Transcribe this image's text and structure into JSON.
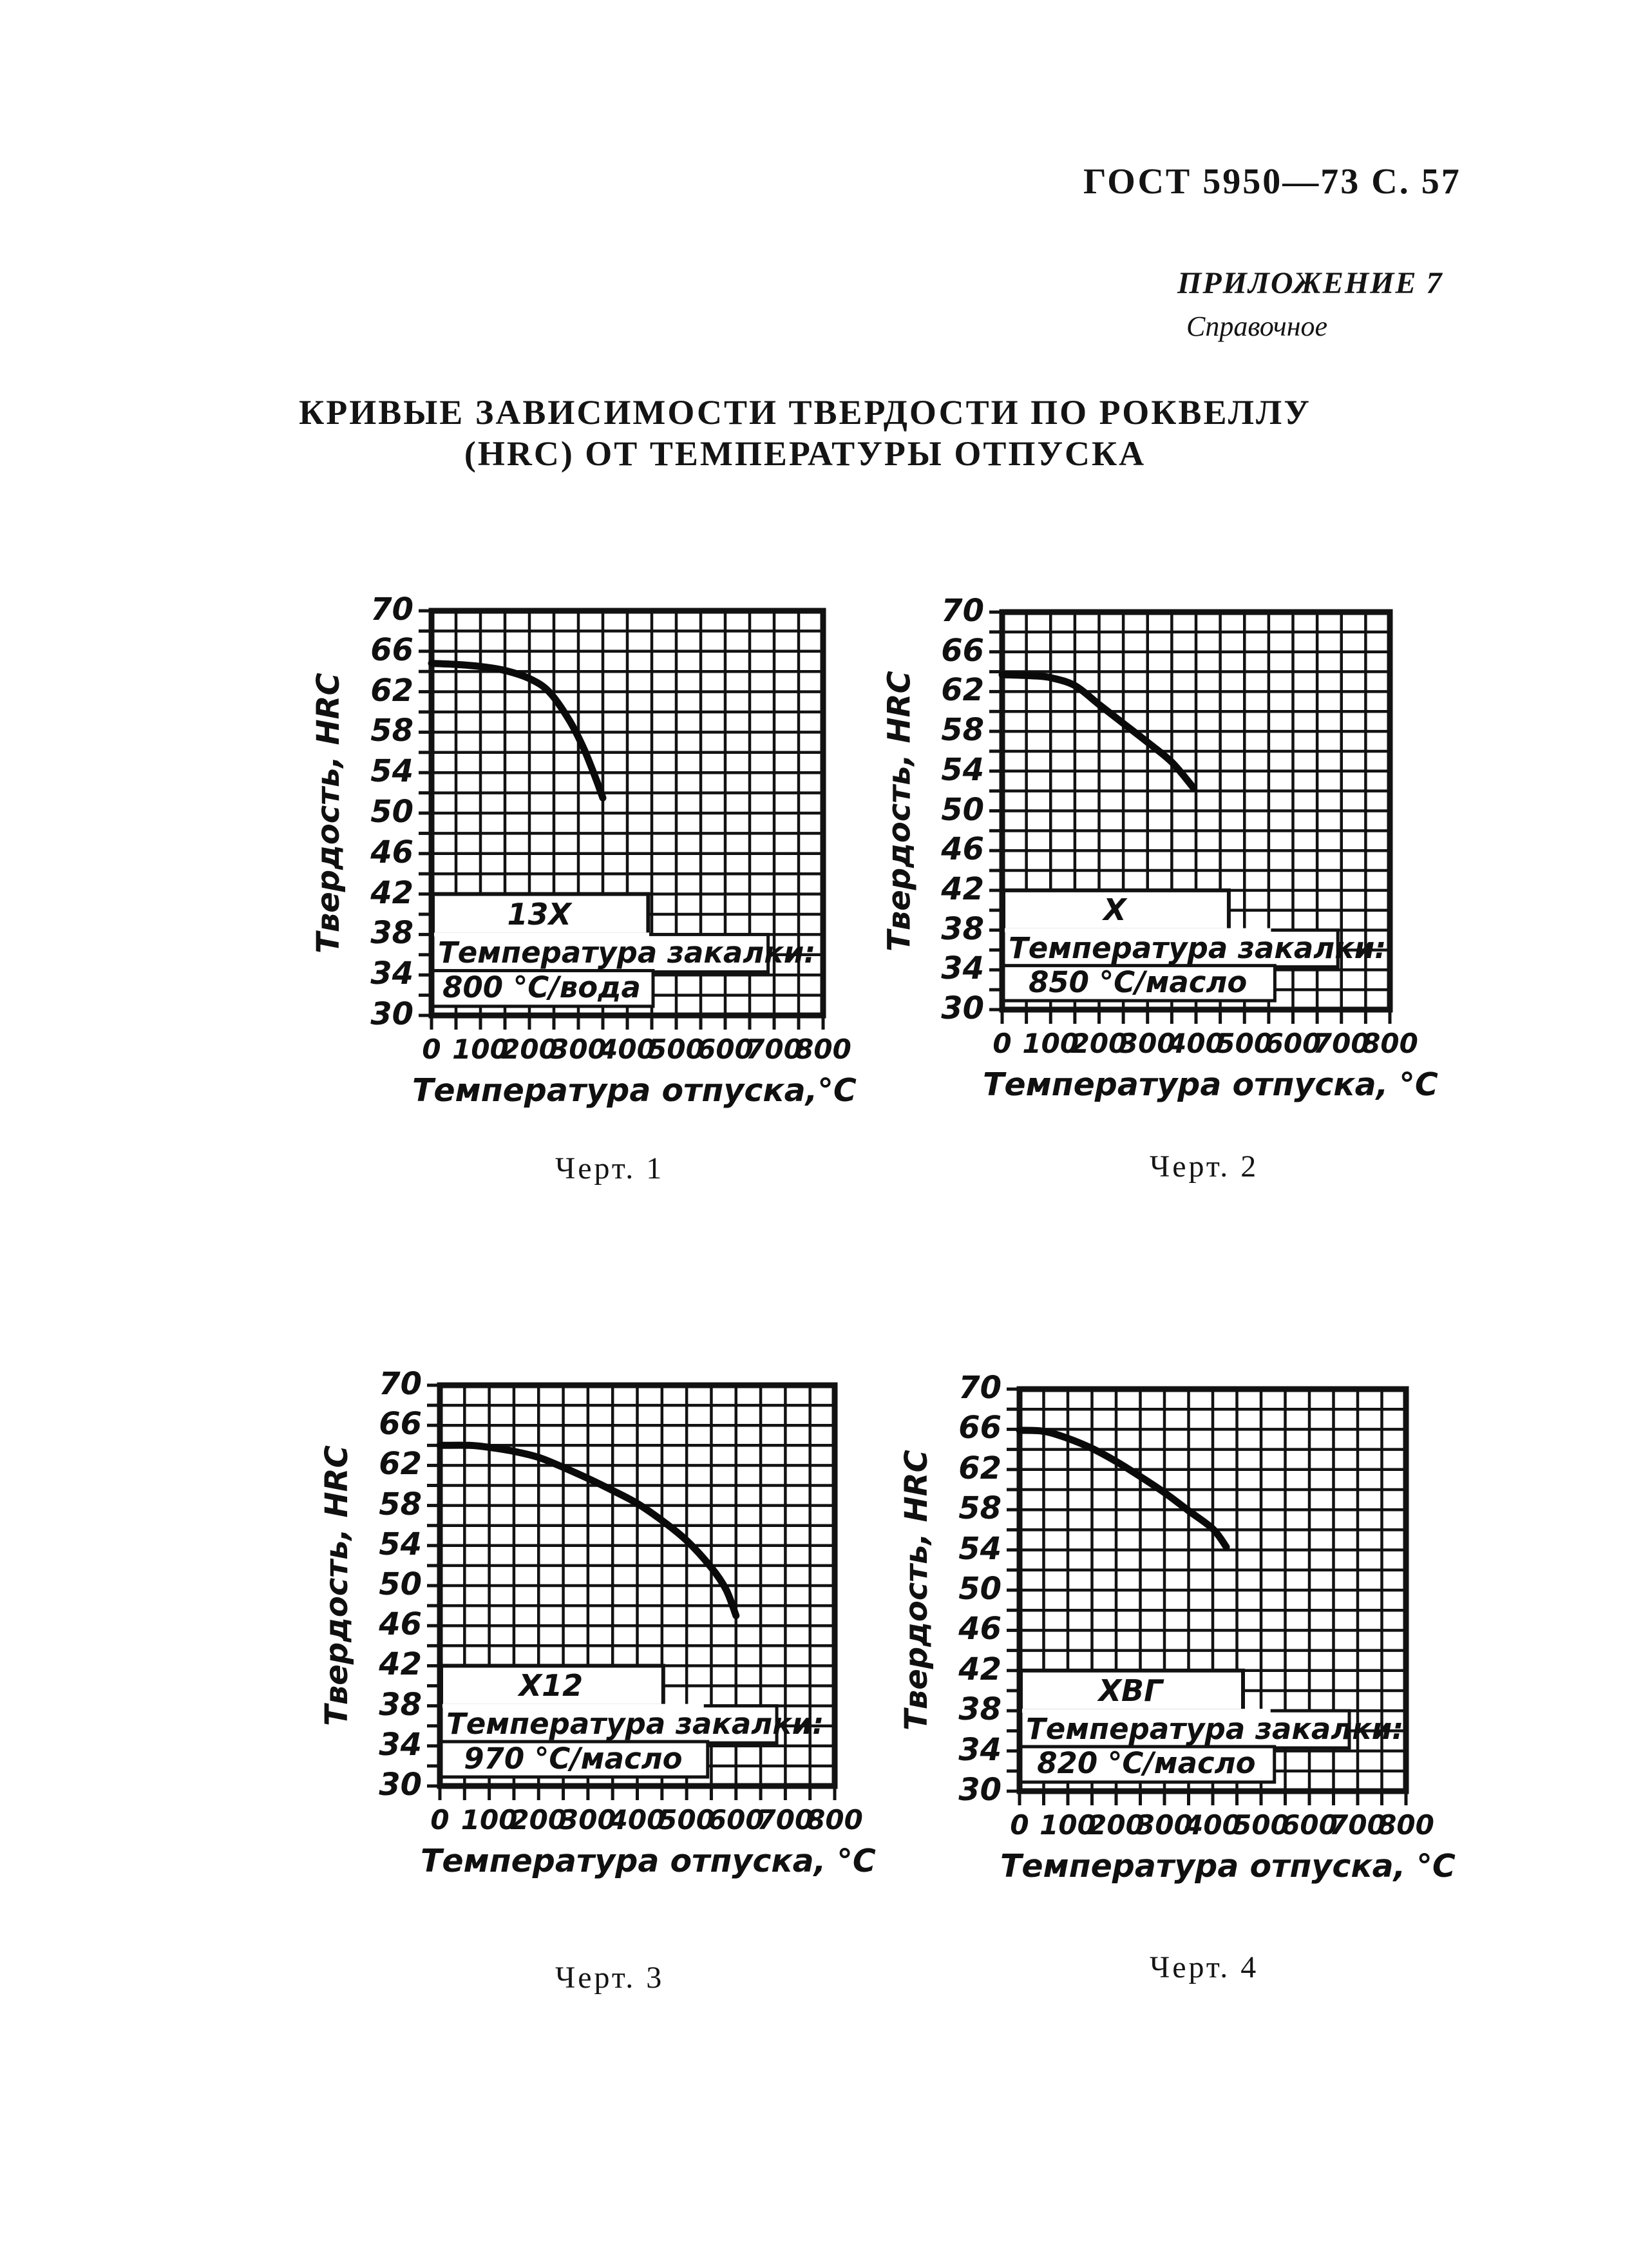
{
  "page": {
    "doc_ref": "ГОСТ 5950—73 С. 57",
    "annex": "ПРИЛОЖЕНИЕ 7",
    "annex_note": "Справочное",
    "title_line1": "КРИВЫЕ ЗАВИСИМОСТИ ТВЕРДОСТИ ПО РОКВЕЛЛУ",
    "title_line2": "(HRC) ОТ ТЕМПЕРАТУРЫ ОТПУСКА"
  },
  "colors": {
    "ink": "#121212",
    "paper": "#ffffff"
  },
  "chart_data": [
    {
      "type": "line",
      "caption": "Черт. 1",
      "ylabel": "Твердость, HRC",
      "xlabel": "Температура отпуска,°С",
      "xlim": [
        0,
        800
      ],
      "ylim": [
        30,
        70
      ],
      "grid_x_step": 50,
      "grid_y_step": 2,
      "x_ticks": [
        0,
        100,
        200,
        300,
        400,
        500,
        600,
        700,
        800
      ],
      "y_ticks": [
        70,
        66,
        62,
        58,
        54,
        50,
        46,
        42,
        38,
        34,
        30
      ],
      "legend_position": "in-plot lower-left boxes",
      "grid": "on",
      "series": [
        {
          "name": "13Х",
          "points": [
            [
              0,
              64.8
            ],
            [
              50,
              64.7
            ],
            [
              100,
              64.5
            ],
            [
              150,
              64.1
            ],
            [
              200,
              63.3
            ],
            [
              240,
              62.0
            ],
            [
              280,
              59.3
            ],
            [
              310,
              56.5
            ],
            [
              335,
              53.5
            ],
            [
              350,
              51.5
            ]
          ]
        }
      ],
      "annotation": {
        "line1": "Температура закалки:",
        "line2": "800 °С/вода"
      }
    },
    {
      "type": "line",
      "caption": "Черт. 2",
      "ylabel": "Твердость, HRC",
      "xlabel": "Температура отпуска, °С",
      "xlim": [
        0,
        800
      ],
      "ylim": [
        30,
        70
      ],
      "grid_x_step": 50,
      "grid_y_step": 2,
      "x_ticks": [
        0,
        100,
        200,
        300,
        400,
        500,
        600,
        700,
        800
      ],
      "y_ticks": [
        70,
        66,
        62,
        58,
        54,
        50,
        46,
        42,
        38,
        34,
        30
      ],
      "legend_position": "in-plot lower-left boxes",
      "grid": "on",
      "series": [
        {
          "name": "Х",
          "points": [
            [
              0,
              63.7
            ],
            [
              60,
              63.6
            ],
            [
              100,
              63.4
            ],
            [
              150,
              62.6
            ],
            [
              200,
              60.7
            ],
            [
              250,
              58.8
            ],
            [
              300,
              56.9
            ],
            [
              350,
              54.9
            ],
            [
              395,
              52.3
            ]
          ]
        }
      ],
      "annotation": {
        "line1": "Температура закалки:",
        "line2": "850 °С/масло"
      }
    },
    {
      "type": "line",
      "caption": "Черт. 3",
      "ylabel": "Твердость, HRC",
      "xlabel": "Температура отпуска, °С",
      "xlim": [
        0,
        800
      ],
      "ylim": [
        30,
        70
      ],
      "grid_x_step": 50,
      "grid_y_step": 2,
      "x_ticks": [
        0,
        100,
        200,
        300,
        400,
        500,
        600,
        700,
        800
      ],
      "y_ticks": [
        70,
        66,
        62,
        58,
        54,
        50,
        46,
        42,
        38,
        34,
        30
      ],
      "legend_position": "in-plot lower-left boxes",
      "grid": "on",
      "series": [
        {
          "name": "Х12",
          "points": [
            [
              0,
              64.0
            ],
            [
              60,
              64.0
            ],
            [
              100,
              63.8
            ],
            [
              150,
              63.4
            ],
            [
              200,
              62.8
            ],
            [
              250,
              61.8
            ],
            [
              300,
              60.7
            ],
            [
              350,
              59.5
            ],
            [
              400,
              58.2
            ],
            [
              450,
              56.5
            ],
            [
              500,
              54.5
            ],
            [
              550,
              51.8
            ],
            [
              580,
              49.6
            ],
            [
              600,
              47.0
            ]
          ]
        }
      ],
      "annotation": {
        "line1": "Температура закалки:",
        "line2": "970 °С/масло"
      }
    },
    {
      "type": "line",
      "caption": "Черт. 4",
      "ylabel": "Твердость, HRC",
      "xlabel": "Температура отпуска, °С",
      "xlim": [
        0,
        800
      ],
      "ylim": [
        30,
        70
      ],
      "grid_x_step": 50,
      "grid_y_step": 2,
      "x_ticks": [
        0,
        100,
        200,
        300,
        400,
        500,
        600,
        700,
        800
      ],
      "y_ticks": [
        70,
        66,
        62,
        58,
        54,
        50,
        46,
        42,
        38,
        34,
        30
      ],
      "legend_position": "in-plot lower-left boxes",
      "grid": "on",
      "series": [
        {
          "name": "ХВГ",
          "points": [
            [
              0,
              65.9
            ],
            [
              50,
              65.8
            ],
            [
              100,
              65.1
            ],
            [
              150,
              64.1
            ],
            [
              200,
              62.8
            ],
            [
              250,
              61.3
            ],
            [
              300,
              59.7
            ],
            [
              350,
              57.9
            ],
            [
              400,
              56.1
            ],
            [
              428,
              54.3
            ]
          ]
        }
      ],
      "annotation": {
        "line1": "Температура закалки:",
        "line2": "820 °С/масло"
      }
    }
  ]
}
